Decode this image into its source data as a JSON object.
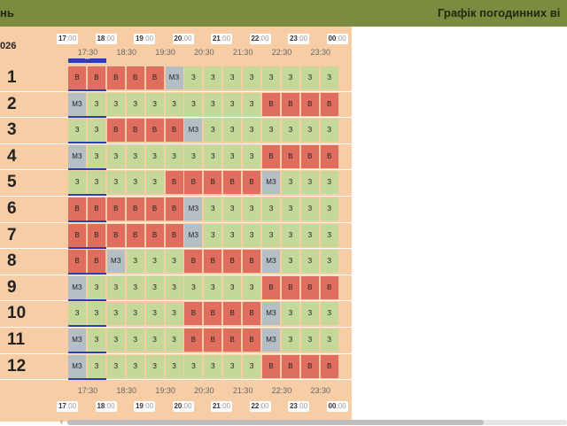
{
  "header": {
    "left_title": "нь",
    "right_title": "Графік погодинних ві"
  },
  "date_label": "026",
  "hours_top": [
    {
      "h": "17",
      "m": ":00"
    },
    {
      "h": "18",
      "m": ":00"
    },
    {
      "h": "19",
      "m": ":00"
    },
    {
      "h": "20",
      "m": ":00"
    },
    {
      "h": "21",
      "m": ":00"
    },
    {
      "h": "22",
      "m": ":00"
    },
    {
      "h": "23",
      "m": ":00"
    },
    {
      "h": "00",
      "m": ":00"
    }
  ],
  "half_hours": [
    "17:30",
    "18:30",
    "19:30",
    "20:30",
    "21:30",
    "22:30",
    "23:30"
  ],
  "now_marker": "***",
  "rows": [
    {
      "num": "1",
      "cells": [
        "В",
        "В",
        "В",
        "В",
        "В",
        "МЗ",
        "З",
        "З",
        "З",
        "З",
        "З",
        "З",
        "З",
        "З"
      ]
    },
    {
      "num": "2",
      "cells": [
        "МЗ",
        "З",
        "З",
        "З",
        "З",
        "З",
        "З",
        "З",
        "З",
        "З",
        "В",
        "В",
        "В",
        "В"
      ]
    },
    {
      "num": "3",
      "cells": [
        "З",
        "З",
        "В",
        "В",
        "В",
        "В",
        "МЗ",
        "З",
        "З",
        "З",
        "З",
        "З",
        "З",
        "З"
      ]
    },
    {
      "num": "4",
      "cells": [
        "МЗ",
        "З",
        "З",
        "З",
        "З",
        "З",
        "З",
        "З",
        "З",
        "З",
        "В",
        "В",
        "В",
        "В"
      ]
    },
    {
      "num": "5",
      "cells": [
        "З",
        "З",
        "З",
        "З",
        "З",
        "В",
        "В",
        "В",
        "В",
        "В",
        "МЗ",
        "З",
        "З",
        "З"
      ]
    },
    {
      "num": "6",
      "cells": [
        "В",
        "В",
        "В",
        "В",
        "В",
        "В",
        "МЗ",
        "З",
        "З",
        "З",
        "З",
        "З",
        "З",
        "З"
      ]
    },
    {
      "num": "7",
      "cells": [
        "В",
        "В",
        "В",
        "В",
        "В",
        "В",
        "МЗ",
        "З",
        "З",
        "З",
        "З",
        "З",
        "З",
        "З"
      ]
    },
    {
      "num": "8",
      "cells": [
        "В",
        "В",
        "МЗ",
        "З",
        "З",
        "З",
        "В",
        "В",
        "В",
        "В",
        "МЗ",
        "З",
        "З",
        "З"
      ]
    },
    {
      "num": "9",
      "cells": [
        "МЗ",
        "З",
        "З",
        "З",
        "З",
        "З",
        "З",
        "З",
        "З",
        "З",
        "В",
        "В",
        "В",
        "В"
      ]
    },
    {
      "num": "10",
      "cells": [
        "З",
        "З",
        "З",
        "З",
        "З",
        "З",
        "В",
        "В",
        "В",
        "В",
        "МЗ",
        "З",
        "З",
        "З"
      ]
    },
    {
      "num": "11",
      "cells": [
        "МЗ",
        "З",
        "З",
        "З",
        "З",
        "З",
        "В",
        "В",
        "В",
        "В",
        "МЗ",
        "З",
        "З",
        "З"
      ]
    },
    {
      "num": "12",
      "cells": [
        "МЗ",
        "З",
        "З",
        "З",
        "З",
        "З",
        "З",
        "З",
        "З",
        "З",
        "В",
        "В",
        "В",
        "В"
      ]
    }
  ],
  "colors": {
    "З": "#c5d799",
    "В": "#e06e5e",
    "МЗ": "#b6bec5",
    "header": "#7b8b40",
    "panel": "#f7cda6",
    "now": "#2c3fae"
  }
}
